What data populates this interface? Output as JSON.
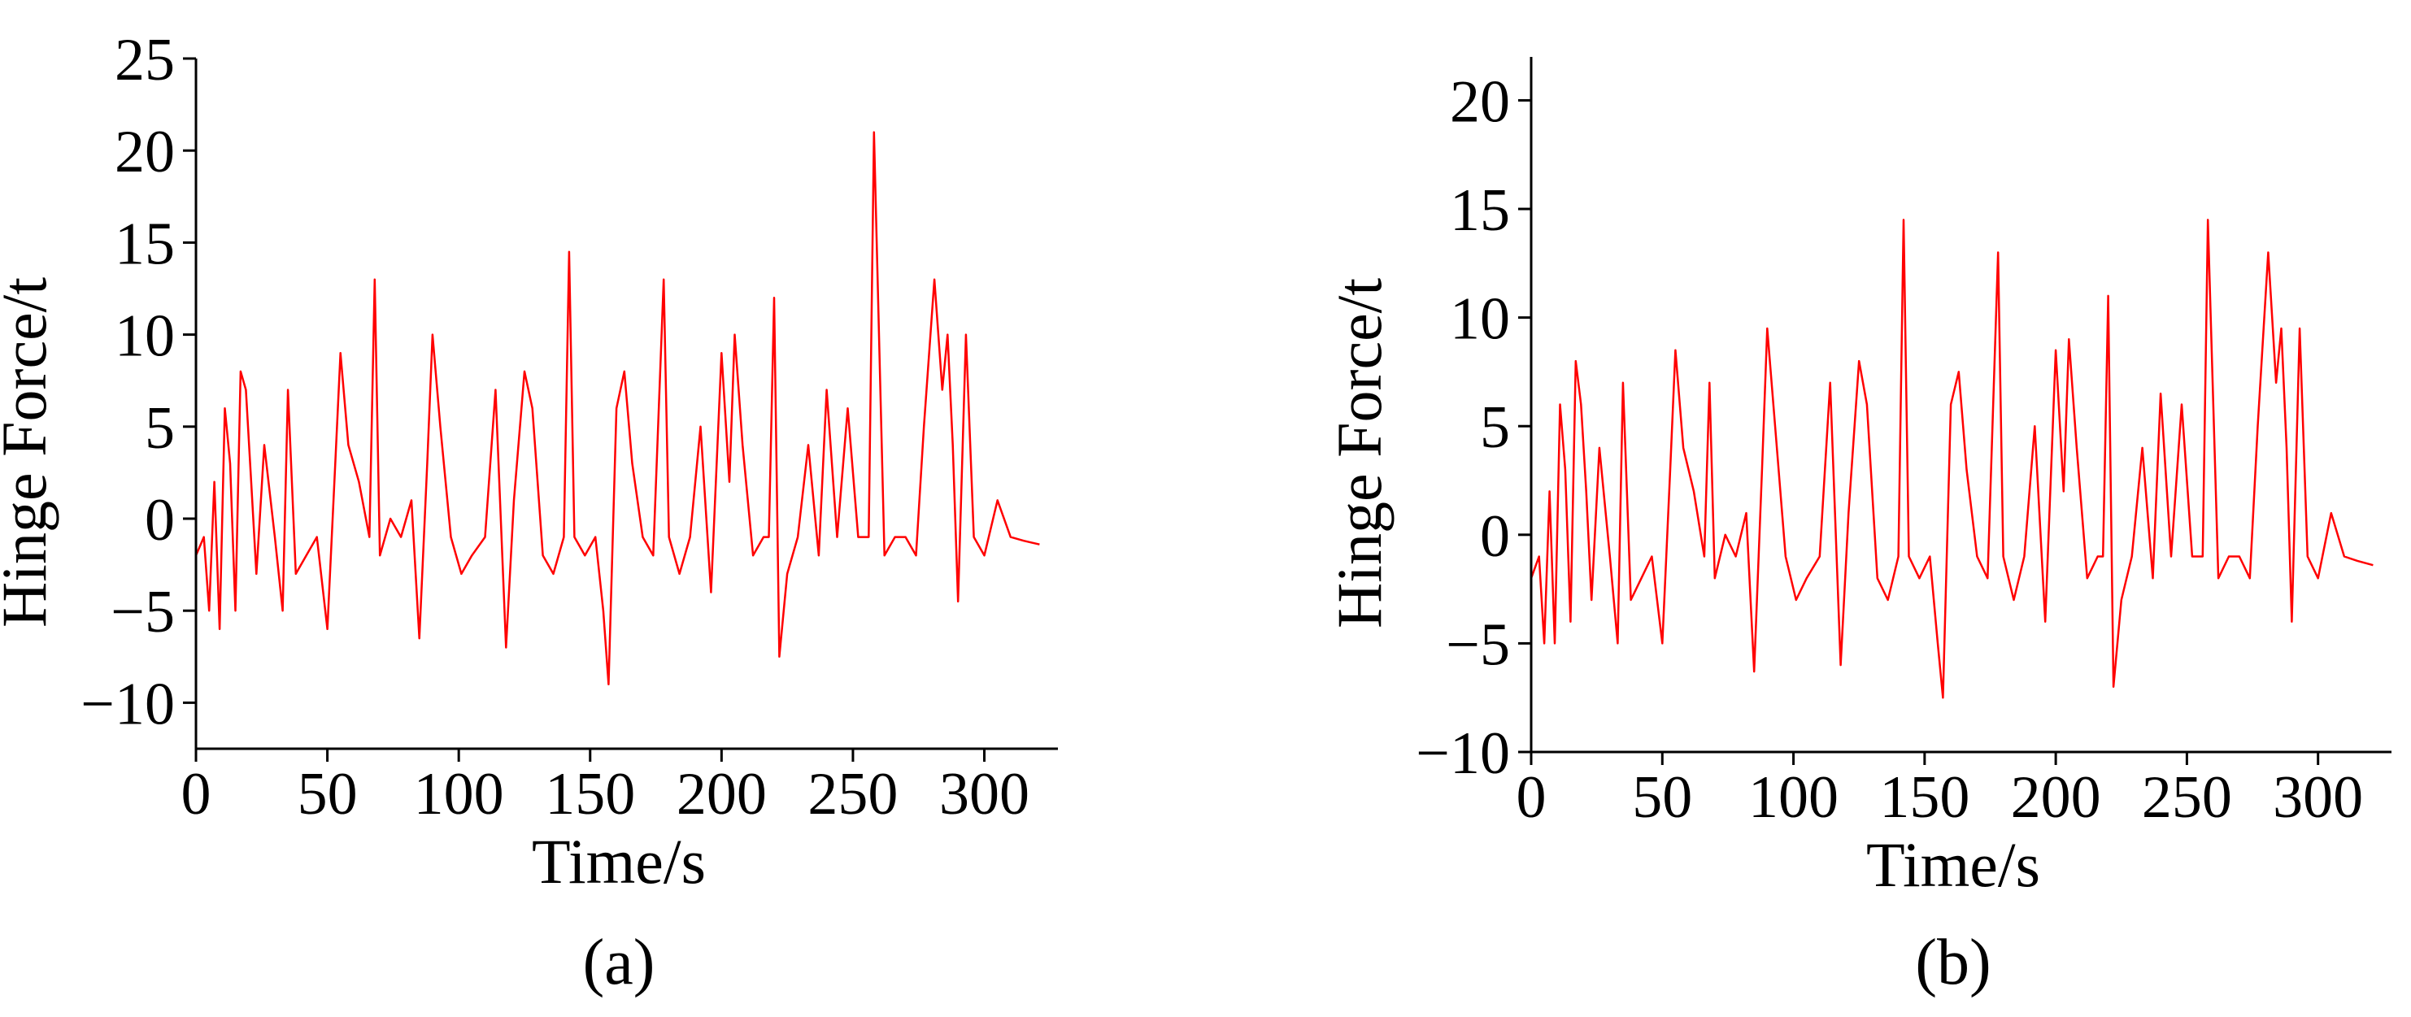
{
  "chart_data": [
    {
      "type": "line",
      "caption": "(a)",
      "x_label": "Time/s",
      "y_label": "Hinge Force/t",
      "xlim": [
        0,
        328
      ],
      "xticks": [
        0,
        50,
        100,
        150,
        200,
        250,
        300
      ],
      "ylim": [
        -12.5,
        25
      ],
      "yticks": [
        {
          "value": -10,
          "label": "−10"
        },
        {
          "value": -5,
          "label": "−5"
        },
        0,
        5,
        10,
        15,
        20,
        25
      ],
      "x": [
        0,
        3,
        5,
        7,
        9,
        11,
        13,
        15,
        17,
        19,
        21,
        23,
        26,
        30,
        33,
        35,
        38,
        42,
        46,
        50,
        53,
        55,
        58,
        62,
        66,
        68,
        70,
        74,
        78,
        82,
        85,
        88,
        90,
        93,
        97,
        101,
        105,
        110,
        114,
        118,
        121,
        125,
        128,
        132,
        136,
        140,
        142,
        144,
        148,
        152,
        155,
        157,
        160,
        163,
        166,
        170,
        174,
        178,
        180,
        184,
        188,
        192,
        196,
        200,
        203,
        205,
        208,
        212,
        216,
        218,
        220,
        222,
        225,
        229,
        233,
        237,
        240,
        244,
        248,
        252,
        256,
        258,
        262,
        266,
        270,
        274,
        277,
        281,
        284,
        286,
        288,
        290,
        293,
        296,
        300,
        305,
        310,
        315,
        321
      ],
      "series": [
        {
          "color": "#ff0000",
          "values": [
            -2,
            -1,
            -5,
            2,
            -6,
            6,
            3,
            -5,
            8,
            7,
            2,
            -3,
            4,
            -1,
            -5,
            7,
            -3,
            -2,
            -1,
            -6,
            3,
            9,
            4,
            2,
            -1,
            13,
            -2,
            0,
            -1,
            1,
            -6.5,
            3,
            10,
            5,
            -1,
            -3,
            -2,
            -1,
            7,
            -7,
            1,
            8,
            6,
            -2,
            -3,
            -1,
            14.5,
            -1,
            -2,
            -1,
            -5,
            -9,
            6,
            8,
            3,
            -1,
            -2,
            13,
            -1,
            -3,
            -1,
            5,
            -4,
            9,
            2,
            10,
            4,
            -2,
            -1,
            -1,
            12,
            -7.5,
            -3,
            -1,
            4,
            -2,
            7,
            -1,
            6,
            -1,
            -1,
            21,
            -2,
            -1,
            -1,
            -2,
            5,
            13,
            7,
            10,
            4,
            -4.5,
            10,
            -1,
            -2,
            1,
            -1,
            -1.2,
            -1.4
          ]
        }
      ]
    },
    {
      "type": "line",
      "caption": "(b)",
      "x_label": "Time/s",
      "y_label": "Hinge Force/t",
      "xlim": [
        0,
        328
      ],
      "xticks": [
        0,
        50,
        100,
        150,
        200,
        250,
        300
      ],
      "ylim": [
        -10,
        22
      ],
      "yticks": [
        {
          "value": -10,
          "label": "−10"
        },
        {
          "value": -5,
          "label": "−5"
        },
        0,
        5,
        10,
        15,
        20
      ],
      "x": [
        0,
        3,
        5,
        7,
        9,
        11,
        13,
        15,
        17,
        19,
        21,
        23,
        26,
        30,
        33,
        35,
        38,
        42,
        46,
        50,
        53,
        55,
        58,
        62,
        66,
        68,
        70,
        74,
        78,
        82,
        85,
        88,
        90,
        93,
        97,
        101,
        105,
        110,
        114,
        118,
        121,
        125,
        128,
        132,
        136,
        140,
        142,
        144,
        148,
        152,
        155,
        157,
        160,
        163,
        166,
        170,
        174,
        178,
        180,
        184,
        188,
        192,
        196,
        200,
        203,
        205,
        208,
        212,
        216,
        218,
        220,
        222,
        225,
        229,
        233,
        237,
        240,
        244,
        248,
        252,
        256,
        258,
        262,
        266,
        270,
        274,
        277,
        281,
        284,
        286,
        288,
        290,
        293,
        296,
        300,
        305,
        310,
        315,
        321
      ],
      "series": [
        {
          "color": "#ff0000",
          "values": [
            -2,
            -1,
            -5,
            2,
            -5,
            6,
            3,
            -4,
            8,
            6,
            2,
            -3,
            4,
            -1,
            -5,
            7,
            -3,
            -2,
            -1,
            -5,
            3,
            8.5,
            4,
            2,
            -1,
            7,
            -2,
            0,
            -1,
            1,
            -6.3,
            3,
            9.5,
            5,
            -1,
            -3,
            -2,
            -1,
            7,
            -6,
            1,
            8,
            6,
            -2,
            -3,
            -1,
            14.5,
            -1,
            -2,
            -1,
            -5,
            -7.5,
            6,
            7.5,
            3,
            -1,
            -2,
            13,
            -1,
            -3,
            -1,
            5,
            -4,
            8.5,
            2,
            9,
            4,
            -2,
            -1,
            -1,
            11,
            -7,
            -3,
            -1,
            4,
            -2,
            6.5,
            -1,
            6,
            -1,
            -1,
            14.5,
            -2,
            -1,
            -1,
            -2,
            5,
            13,
            7,
            9.5,
            4,
            -4,
            9.5,
            -1,
            -2,
            1,
            -1,
            -1.2,
            -1.4
          ]
        }
      ]
    }
  ]
}
